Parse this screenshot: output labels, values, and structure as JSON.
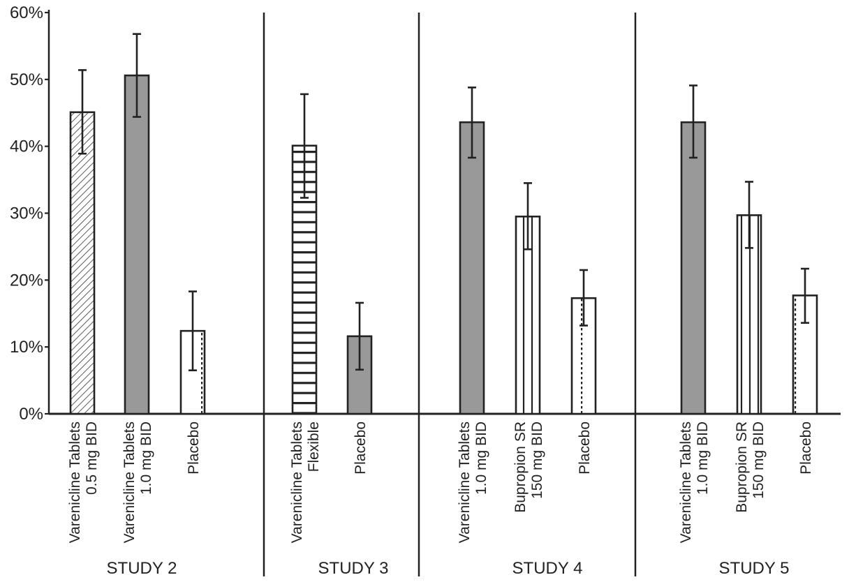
{
  "chart_data": {
    "type": "bar",
    "title": "",
    "xlabel": "",
    "ylabel": "",
    "ylim": [
      0,
      60
    ],
    "yticks": [
      "0%",
      "10%",
      "20%",
      "30%",
      "40%",
      "50%",
      "60%"
    ],
    "studies": [
      {
        "label": "STUDY 2",
        "bars": [
          {
            "label_lines": [
              "Varenicline Tablets",
              "0.5 mg BID"
            ],
            "value": 45.1,
            "err_low": 38.9,
            "err_high": 51.4,
            "pattern": "diagonal"
          },
          {
            "label_lines": [
              "Varenicline Tablets",
              "1.0 mg BID"
            ],
            "value": 50.6,
            "err_low": 44.4,
            "err_high": 56.8,
            "pattern": "solid"
          },
          {
            "label_lines": [
              "Placebo"
            ],
            "value": 12.4,
            "err_low": 6.5,
            "err_high": 18.3,
            "pattern": "dotted"
          }
        ]
      },
      {
        "label": "STUDY 3",
        "bars": [
          {
            "label_lines": [
              "Varenicline Tablets",
              "Flexible"
            ],
            "value": 40.1,
            "err_low": 32.3,
            "err_high": 47.8,
            "pattern": "horizontal"
          },
          {
            "label_lines": [
              "Placebo"
            ],
            "value": 11.6,
            "err_low": 6.6,
            "err_high": 16.6,
            "pattern": "solid"
          }
        ]
      },
      {
        "label": "STUDY 4",
        "bars": [
          {
            "label_lines": [
              "Varenicline Tablets",
              "1.0 mg BID"
            ],
            "value": 43.6,
            "err_low": 38.3,
            "err_high": 48.8,
            "pattern": "solid"
          },
          {
            "label_lines": [
              "Bupropion SR",
              "150 mg BID"
            ],
            "value": 29.5,
            "err_low": 24.6,
            "err_high": 34.5,
            "pattern": "vertical"
          },
          {
            "label_lines": [
              "Placebo"
            ],
            "value": 17.3,
            "err_low": 13.2,
            "err_high": 21.5,
            "pattern": "dotted"
          }
        ]
      },
      {
        "label": "STUDY 5",
        "bars": [
          {
            "label_lines": [
              "Varenicline Tablets",
              "1.0 mg BID"
            ],
            "value": 43.6,
            "err_low": 38.3,
            "err_high": 49.1,
            "pattern": "solid"
          },
          {
            "label_lines": [
              "Bupropion SR",
              "150 mg BID"
            ],
            "value": 29.7,
            "err_low": 24.8,
            "err_high": 34.7,
            "pattern": "vertical"
          },
          {
            "label_lines": [
              "Placebo"
            ],
            "value": 17.7,
            "err_low": 13.6,
            "err_high": 21.7,
            "pattern": "dotted"
          }
        ]
      }
    ]
  },
  "colors": {
    "solid_fill": "#999999",
    "stroke": "#222222",
    "background": "#ffffff"
  }
}
